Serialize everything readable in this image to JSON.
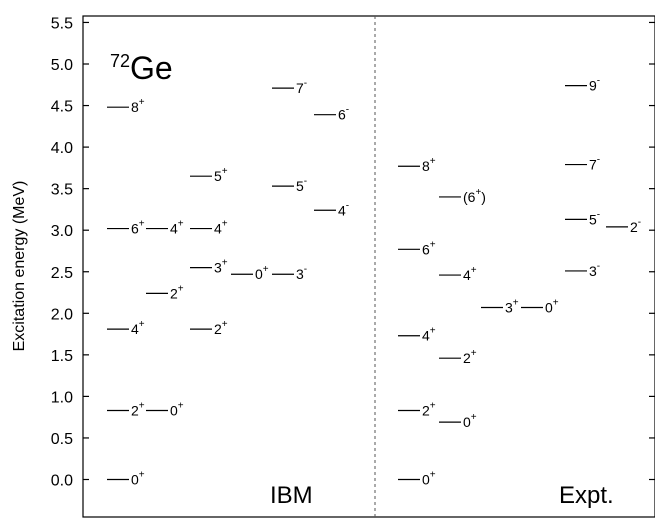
{
  "chart_data": {
    "type": "level-scheme",
    "nucleus": {
      "mass_number": "72",
      "symbol": "Ge"
    },
    "ylabel": "Excitation energy (MeV)",
    "ylim": [
      -0.05,
      5.5
    ],
    "yticks": [
      "0.0",
      "0.5",
      "1.0",
      "1.5",
      "2.0",
      "2.5",
      "3.0",
      "3.5",
      "4.0",
      "4.5",
      "5.0",
      "5.5"
    ],
    "yticks_values": [
      0.0,
      0.5,
      1.0,
      1.5,
      2.0,
      2.5,
      3.0,
      3.5,
      4.0,
      4.5,
      5.0,
      5.5
    ],
    "panels": [
      {
        "name": "IBM",
        "levels": [
          {
            "column": 0,
            "energy": 0.0,
            "spin": "0",
            "parity": "+"
          },
          {
            "column": 0,
            "energy": 0.83,
            "spin": "2",
            "parity": "+"
          },
          {
            "column": 1,
            "energy": 0.83,
            "spin": "0",
            "parity": "+"
          },
          {
            "column": 0,
            "energy": 1.81,
            "spin": "4",
            "parity": "+"
          },
          {
            "column": 2,
            "energy": 1.81,
            "spin": "2",
            "parity": "+"
          },
          {
            "column": 1,
            "energy": 2.24,
            "spin": "2",
            "parity": "+"
          },
          {
            "column": 0,
            "energy": 3.02,
            "spin": "6",
            "parity": "+"
          },
          {
            "column": 1,
            "energy": 3.02,
            "spin": "4",
            "parity": "+"
          },
          {
            "column": 2,
            "energy": 3.02,
            "spin": "4",
            "parity": "+"
          },
          {
            "column": 2,
            "energy": 2.55,
            "spin": "3",
            "parity": "+"
          },
          {
            "column": 3,
            "energy": 2.47,
            "spin": "0",
            "parity": "+"
          },
          {
            "column": 4,
            "energy": 2.47,
            "spin": "3",
            "parity": "-"
          },
          {
            "column": 2,
            "energy": 3.65,
            "spin": "5",
            "parity": "+"
          },
          {
            "column": 0,
            "energy": 4.48,
            "spin": "8",
            "parity": "+"
          },
          {
            "column": 4,
            "energy": 3.53,
            "spin": "5",
            "parity": "-"
          },
          {
            "column": 4,
            "energy": 4.71,
            "spin": "7",
            "parity": "-"
          },
          {
            "column": 5,
            "energy": 4.39,
            "spin": "6",
            "parity": "-"
          },
          {
            "column": 5,
            "energy": 3.24,
            "spin": "4",
            "parity": "-"
          }
        ]
      },
      {
        "name": "Expt.",
        "levels": [
          {
            "column": 0,
            "energy": 0.0,
            "spin": "0",
            "parity": "+"
          },
          {
            "column": 0,
            "energy": 0.83,
            "spin": "2",
            "parity": "+"
          },
          {
            "column": 1,
            "energy": 0.69,
            "spin": "0",
            "parity": "+"
          },
          {
            "column": 0,
            "energy": 1.73,
            "spin": "4",
            "parity": "+"
          },
          {
            "column": 1,
            "energy": 1.46,
            "spin": "2",
            "parity": "+"
          },
          {
            "column": 0,
            "energy": 2.77,
            "spin": "6",
            "parity": "+"
          },
          {
            "column": 1,
            "energy": 2.46,
            "spin": "4",
            "parity": "+"
          },
          {
            "column": 2,
            "energy": 2.07,
            "spin": "3",
            "parity": "+"
          },
          {
            "column": 3,
            "energy": 2.07,
            "spin": "0",
            "parity": "+"
          },
          {
            "column": 0,
            "energy": 3.77,
            "spin": "8",
            "parity": "+"
          },
          {
            "column": 1,
            "energy": 3.4,
            "spin": "(6",
            "parity": "+",
            "suffix": ")"
          },
          {
            "column": 4,
            "energy": 4.74,
            "spin": "9",
            "parity": "-"
          },
          {
            "column": 4,
            "energy": 3.79,
            "spin": "7",
            "parity": "-"
          },
          {
            "column": 4,
            "energy": 3.13,
            "spin": "5",
            "parity": "-"
          },
          {
            "column": 5,
            "energy": 3.04,
            "spin": "2",
            "parity": "-"
          },
          {
            "column": 4,
            "energy": 2.51,
            "spin": "3",
            "parity": "-"
          }
        ]
      }
    ]
  }
}
